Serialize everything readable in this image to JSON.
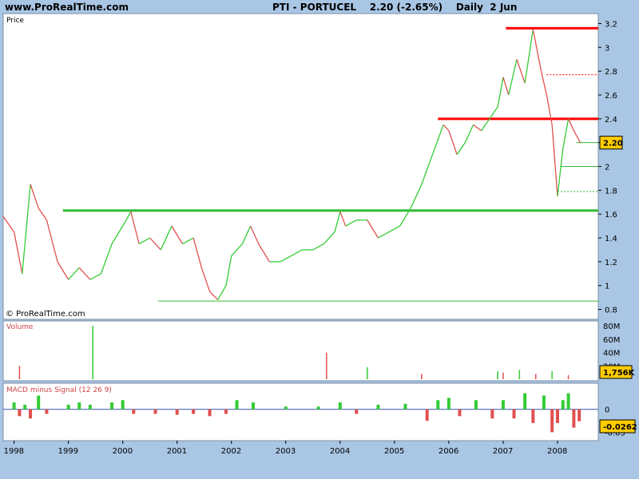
{
  "header": {
    "site": "www.ProRealTime.com",
    "ticker_line": "PTI - PORTUCEL    2.20 (-2.65%)    Daily  2 Jun"
  },
  "colors": {
    "background": "#a9c6e4",
    "panel": "#ffffff",
    "up": "#33cc33",
    "down": "#e05050",
    "resistance": "#ff0000",
    "support": "#33bb33",
    "last_badge": "#ffcc00"
  },
  "chart_data": [
    {
      "type": "line",
      "panel": "price",
      "title": "Price",
      "watermark": "© ProRealTime.com",
      "ylim": [
        0.75,
        3.25
      ],
      "y_ticks": [
        "3.2",
        "3",
        "2.8",
        "2.6",
        "2.4",
        "2.2",
        "2",
        "1.8",
        "1.6",
        "1.4",
        "1.2",
        "1",
        "0.8"
      ],
      "x_ticks": [
        "1998",
        "1999",
        "2000",
        "2001",
        "2002",
        "2003",
        "2004",
        "2005",
        "2006",
        "2007",
        "2008"
      ],
      "last_value": "2.20",
      "series": [
        {
          "x": [
            1997.8,
            1998.0,
            1998.15,
            1998.3,
            1998.45,
            1998.6,
            1998.8,
            1999.0,
            1999.2,
            1999.4,
            1999.6,
            1999.8,
            2000.0,
            2000.15,
            2000.3,
            2000.5,
            2000.7,
            2000.9,
            2001.1,
            2001.3,
            2001.45,
            2001.6,
            2001.75,
            2001.9,
            2002.0,
            2002.2,
            2002.35,
            2002.5,
            2002.7,
            2002.9,
            2003.1,
            2003.3,
            2003.5,
            2003.7,
            2003.9,
            2004.0,
            2004.1,
            2004.3,
            2004.5,
            2004.7,
            2004.9,
            2005.1,
            2005.3,
            2005.5,
            2005.7,
            2005.9,
            2006.0,
            2006.15,
            2006.3,
            2006.45,
            2006.6,
            2006.75,
            2006.9,
            2007.0,
            2007.1,
            2007.25,
            2007.4,
            2007.55,
            2007.7,
            2007.8,
            2007.9,
            2008.0,
            2008.1,
            2008.2,
            2008.3,
            2008.42
          ],
          "values": [
            1.58,
            1.45,
            1.1,
            1.85,
            1.65,
            1.55,
            1.2,
            1.05,
            1.15,
            1.05,
            1.1,
            1.35,
            1.5,
            1.62,
            1.35,
            1.4,
            1.3,
            1.5,
            1.35,
            1.4,
            1.15,
            0.95,
            0.88,
            1.0,
            1.25,
            1.35,
            1.5,
            1.35,
            1.2,
            1.2,
            1.25,
            1.3,
            1.3,
            1.35,
            1.45,
            1.62,
            1.5,
            1.55,
            1.55,
            1.4,
            1.45,
            1.5,
            1.65,
            1.85,
            2.1,
            2.35,
            2.3,
            2.1,
            2.2,
            2.35,
            2.3,
            2.4,
            2.5,
            2.75,
            2.6,
            2.9,
            2.7,
            3.15,
            2.8,
            2.6,
            2.35,
            1.75,
            2.15,
            2.4,
            2.3,
            2.2
          ]
        }
      ],
      "levels": [
        {
          "kind": "resistance",
          "value": 3.16,
          "from": 2007.05,
          "to": 2008.75
        },
        {
          "kind": "resistance",
          "value": 2.4,
          "from": 2005.8,
          "to": 2008.75
        },
        {
          "kind": "support",
          "value": 1.63,
          "from": 1998.9,
          "to": 2008.75
        },
        {
          "kind": "support",
          "value": 2.2,
          "from": 2008.35,
          "to": 2008.75
        },
        {
          "kind": "support",
          "value": 2.0,
          "from": 2008.05,
          "to": 2008.75
        },
        {
          "kind": "support",
          "value": 0.87,
          "from": 2000.65,
          "to": 2008.75
        }
      ],
      "dashed_levels": [
        {
          "kind": "resistance",
          "value": 2.77,
          "from": 2007.8,
          "to": 2008.75
        },
        {
          "kind": "support",
          "value": 1.79,
          "from": 2008.0,
          "to": 2008.75
        }
      ]
    },
    {
      "type": "bar",
      "panel": "volume",
      "title": "Volume",
      "y_ticks": [
        "80M",
        "60M",
        "40M",
        "20M"
      ],
      "ylim": [
        0,
        85
      ],
      "unit": "M",
      "last_value": "1,756K",
      "x": [
        1998.1,
        1999.45,
        2003.75,
        2004.5,
        2005.5,
        2006.9,
        2007.0,
        2007.3,
        2007.6,
        2007.9,
        2008.2
      ],
      "values": [
        20,
        80,
        40,
        18,
        8,
        12,
        10,
        14,
        8,
        12,
        6
      ]
    },
    {
      "type": "bar",
      "panel": "macd",
      "title": "MACD minus Signal (12 26 9)",
      "y_ticks": [
        "0",
        "-0.05"
      ],
      "ylim": [
        -0.065,
        0.05
      ],
      "last_value": "-0.0262",
      "x": [
        1998.0,
        1998.1,
        1998.2,
        1998.3,
        1998.45,
        1998.6,
        1999.0,
        1999.2,
        1999.4,
        1999.8,
        2000.0,
        2000.2,
        2000.6,
        2001.0,
        2001.3,
        2001.6,
        2001.9,
        2002.1,
        2002.4,
        2003.0,
        2003.6,
        2004.0,
        2004.3,
        2004.7,
        2005.2,
        2005.6,
        2005.8,
        2006.0,
        2006.2,
        2006.5,
        2006.8,
        2007.0,
        2007.2,
        2007.4,
        2007.55,
        2007.75,
        2007.9,
        2008.0,
        2008.1,
        2008.2,
        2008.3,
        2008.4
      ],
      "values": [
        0.015,
        -0.015,
        0.01,
        -0.02,
        0.03,
        -0.01,
        0.01,
        0.015,
        0.01,
        0.015,
        0.02,
        -0.01,
        -0.01,
        -0.012,
        -0.01,
        -0.015,
        -0.01,
        0.02,
        0.015,
        0.006,
        0.006,
        0.015,
        -0.01,
        0.01,
        0.012,
        -0.025,
        0.02,
        0.025,
        -0.015,
        0.02,
        -0.02,
        0.02,
        -0.02,
        0.035,
        -0.03,
        0.03,
        -0.05,
        -0.03,
        0.02,
        0.035,
        -0.04,
        -0.026
      ]
    }
  ]
}
